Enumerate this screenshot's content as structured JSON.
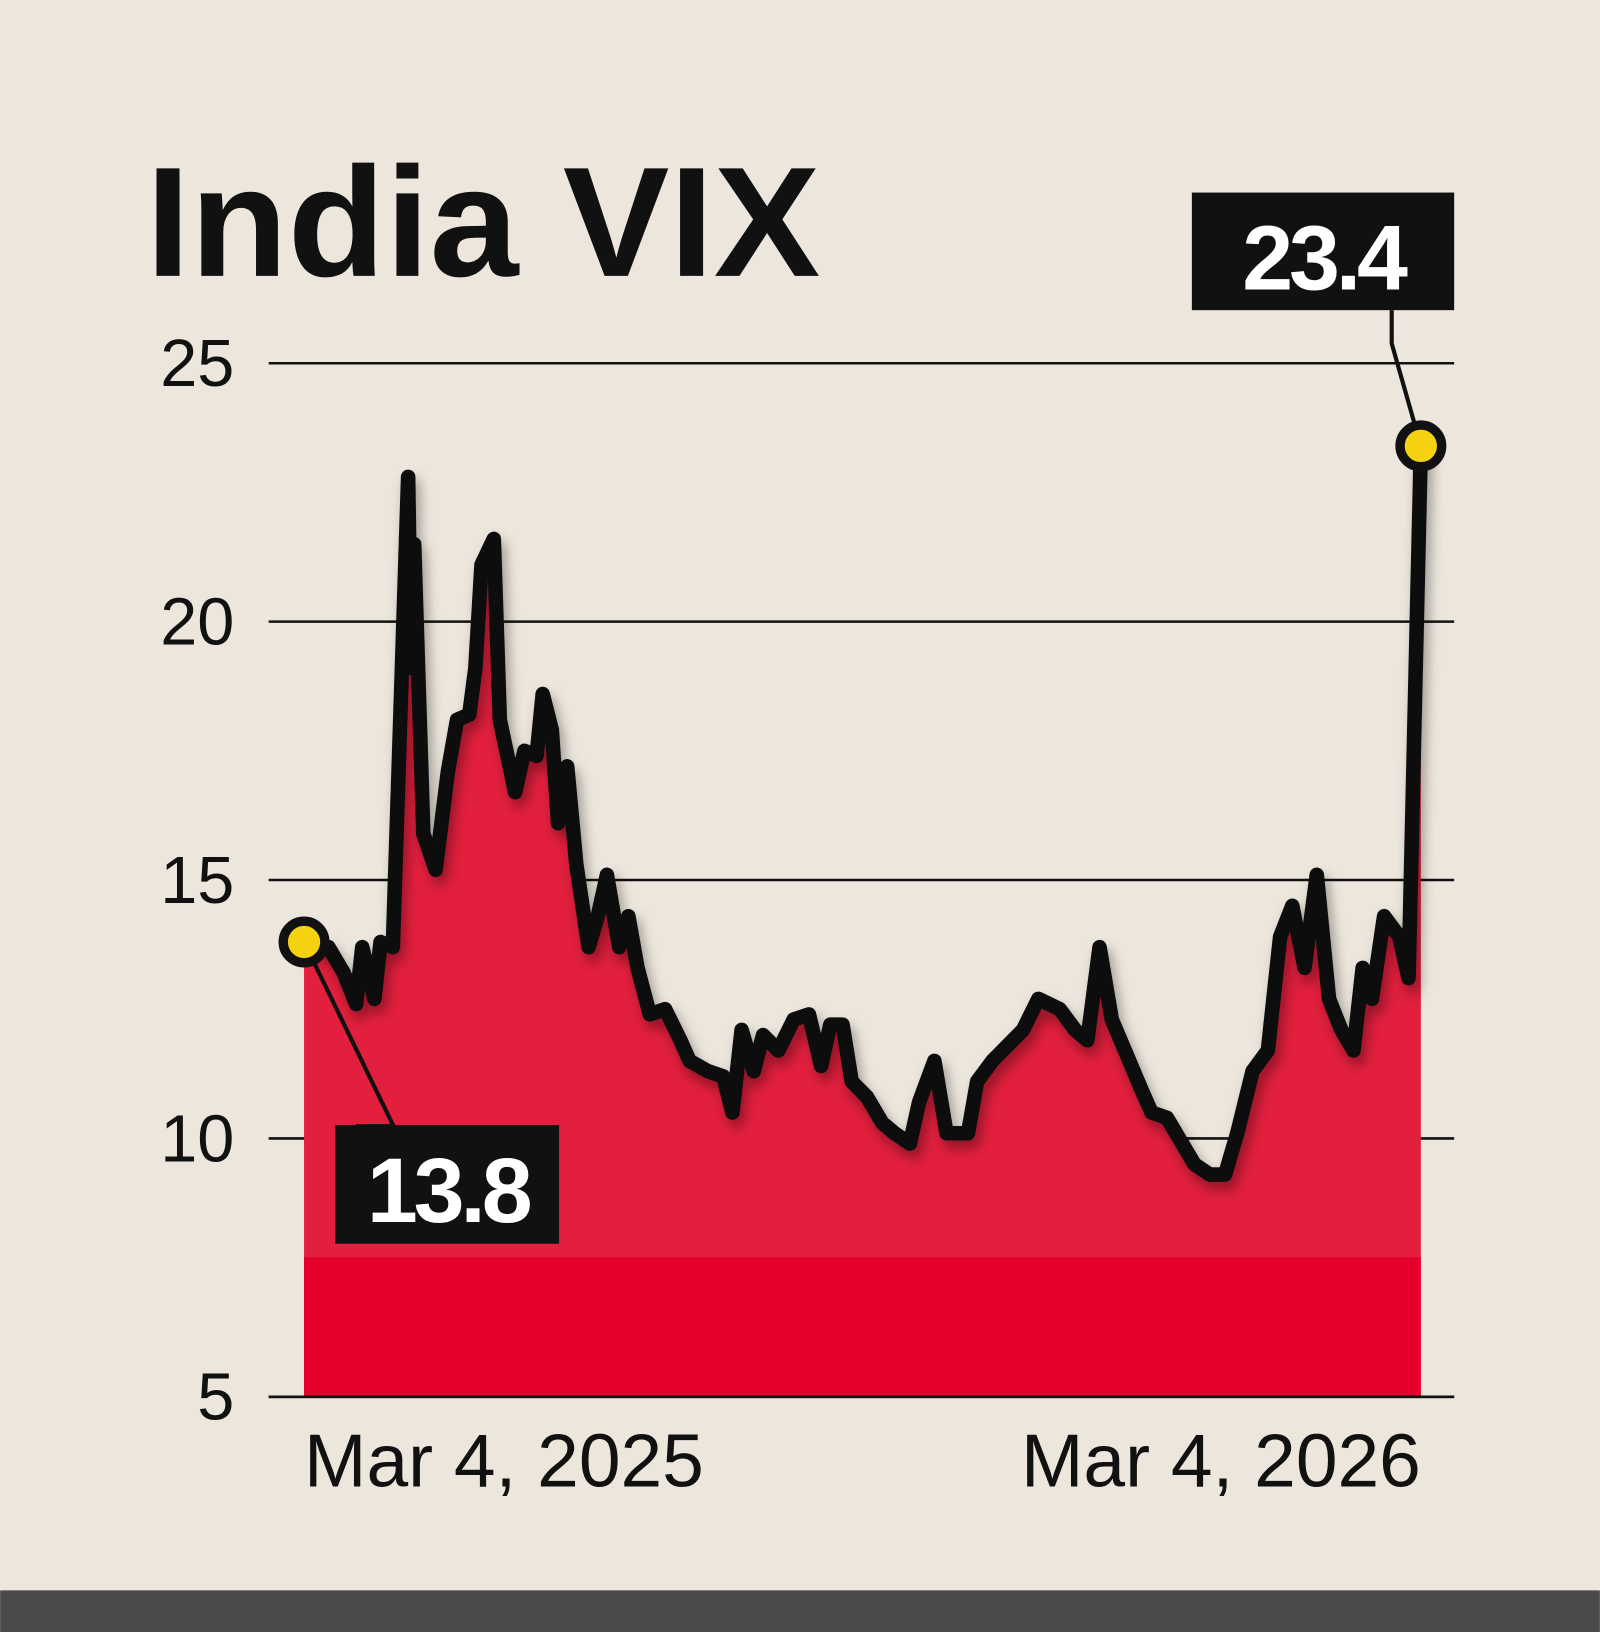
{
  "chart_data": {
    "type": "area",
    "title": "India VIX",
    "xlabel": "",
    "ylabel": "",
    "ylim": [
      5,
      25
    ],
    "yticks": [
      "25",
      "20",
      "15",
      "10",
      "5"
    ],
    "ytick_values": [
      25,
      20,
      15,
      10,
      5
    ],
    "xticks": [
      "Mar 4, 2025",
      "Mar 4, 2026"
    ],
    "xtick_values": [
      "2025-03-04",
      "2026-03-04"
    ],
    "grid": "horizontal",
    "colors": {
      "background": "#ece6dc",
      "fill": "#e21f3d",
      "fill_lower": "#e4002b",
      "line": "#111111",
      "marker": "#f5d20f",
      "label_bg": "#111111",
      "label_text": "#ffffff",
      "footer_bar": "#4a4a4a"
    },
    "annotations": [
      {
        "text": "13.8",
        "date": "2025-03-04",
        "value": 13.8
      },
      {
        "text": "23.4",
        "date": "2026-03-04",
        "value": 23.4
      }
    ],
    "series": [
      {
        "x": [
          "2025-03-04",
          "2025-03-12",
          "2025-03-17",
          "2025-03-21",
          "2025-03-23",
          "2025-03-27",
          "2025-03-29",
          "2025-04-02",
          "2025-04-07",
          "2025-04-08",
          "2025-04-09",
          "2025-04-12",
          "2025-04-16",
          "2025-04-20",
          "2025-04-23",
          "2025-04-27",
          "2025-04-29",
          "2025-05-01",
          "2025-05-05",
          "2025-05-07",
          "2025-05-12",
          "2025-05-15",
          "2025-05-19",
          "2025-05-21",
          "2025-05-24",
          "2025-05-26",
          "2025-05-29",
          "2025-06-01",
          "2025-06-05",
          "2025-06-08",
          "2025-06-11",
          "2025-06-15",
          "2025-06-18",
          "2025-06-21",
          "2025-06-25",
          "2025-06-30",
          "2025-07-05",
          "2025-07-08",
          "2025-07-14",
          "2025-07-19",
          "2025-07-22",
          "2025-07-25",
          "2025-07-29",
          "2025-08-01",
          "2025-08-06",
          "2025-08-11",
          "2025-08-16",
          "2025-08-20",
          "2025-08-23",
          "2025-08-27",
          "2025-08-30",
          "2025-09-04",
          "2025-09-09",
          "2025-09-13",
          "2025-09-18",
          "2025-09-21",
          "2025-09-26",
          "2025-09-30",
          "2025-10-07",
          "2025-10-10",
          "2025-10-15",
          "2025-10-20",
          "2025-10-25",
          "2025-10-30",
          "2025-11-06",
          "2025-11-11",
          "2025-11-15",
          "2025-11-19",
          "2025-11-23",
          "2025-11-28",
          "2025-12-03",
          "2025-12-06",
          "2025-12-11",
          "2025-12-15",
          "2025-12-20",
          "2025-12-25",
          "2025-12-30",
          "2026-01-03",
          "2026-01-08",
          "2026-01-13",
          "2026-01-17",
          "2026-01-21",
          "2026-01-25",
          "2026-01-29",
          "2026-02-02",
          "2026-02-06",
          "2026-02-10",
          "2026-02-13",
          "2026-02-16",
          "2026-02-20",
          "2026-02-25",
          "2026-02-28",
          "2026-03-04"
        ],
        "values": [
          13.8,
          13.7,
          13.2,
          12.6,
          13.7,
          12.7,
          13.8,
          13.7,
          22.8,
          19.1,
          21.5,
          15.9,
          15.2,
          17.1,
          18.1,
          18.2,
          19.1,
          21.1,
          21.6,
          18.1,
          16.7,
          17.5,
          17.4,
          18.6,
          17.9,
          16.1,
          17.2,
          15.3,
          13.7,
          14.3,
          15.1,
          13.7,
          14.3,
          13.3,
          12.4,
          12.5,
          11.9,
          11.5,
          11.3,
          11.2,
          10.5,
          12.1,
          11.3,
          12.0,
          11.7,
          12.3,
          12.4,
          11.4,
          12.2,
          12.2,
          11.1,
          10.8,
          10.3,
          10.1,
          9.9,
          10.7,
          11.5,
          10.1,
          10.1,
          11.1,
          11.5,
          11.8,
          12.1,
          12.7,
          12.5,
          12.1,
          11.9,
          13.7,
          12.3,
          11.6,
          10.9,
          10.5,
          10.4,
          10.0,
          9.5,
          9.3,
          9.3,
          10.1,
          11.3,
          11.7,
          13.9,
          14.5,
          13.3,
          15.1,
          12.7,
          12.1,
          11.7,
          13.3,
          12.7,
          14.3,
          13.9,
          13.1,
          23.4
        ]
      }
    ]
  }
}
